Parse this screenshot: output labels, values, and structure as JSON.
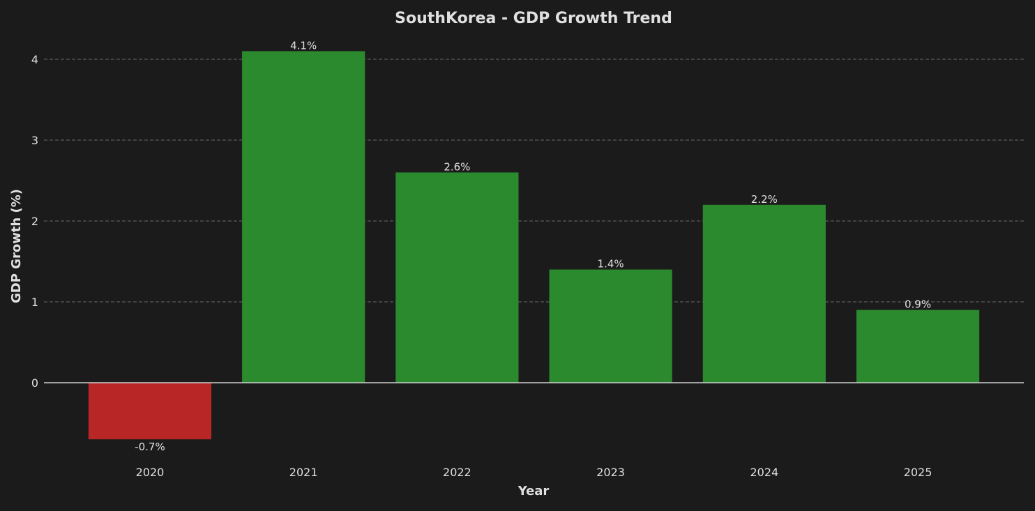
{
  "chart_data": {
    "type": "bar",
    "title": "SouthKorea - GDP Growth Trend",
    "xlabel": "Year",
    "ylabel": "GDP Growth (%)",
    "categories": [
      "2020",
      "2021",
      "2022",
      "2023",
      "2024",
      "2025"
    ],
    "values": [
      -0.7,
      4.1,
      2.6,
      1.4,
      2.2,
      0.9
    ],
    "data_labels": [
      "-0.7%",
      "4.1%",
      "2.6%",
      "1.4%",
      "2.2%",
      "0.9%"
    ],
    "yticks": [
      0,
      1,
      2,
      3,
      4
    ],
    "ylim": [
      -0.94,
      4.34
    ],
    "grid": "horizontal dashed",
    "colors": {
      "positive": "#2b8a2e",
      "negative": "#b92626",
      "background": "#1b1b1b",
      "text": "#e0e0e0",
      "grid": "#6a6a6a",
      "zero_line": "#d0d0d0"
    }
  }
}
